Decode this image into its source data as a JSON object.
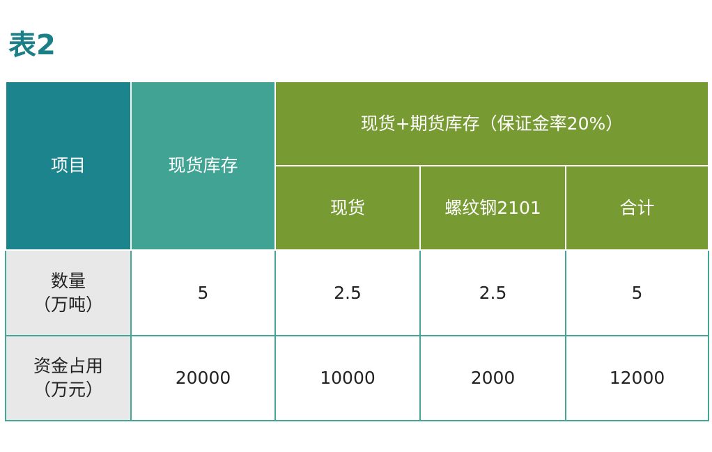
{
  "title": "表2",
  "header": {
    "item": "项目",
    "spot_inventory": "现货库存",
    "group": "现货+期货库存（保证金率20%）",
    "sub": [
      "现货",
      "螺纹钢2101",
      "合计"
    ]
  },
  "rows": [
    {
      "label1": "数量",
      "label2": "（万吨）",
      "values": [
        "5",
        "2.5",
        "2.5",
        "5"
      ]
    },
    {
      "label1": "资金占用",
      "label2": "（万元）",
      "values": [
        "20000",
        "10000",
        "2000",
        "12000"
      ]
    }
  ],
  "colors": {
    "item_header": "#1b848c",
    "spot_header": "#40a393",
    "group_header": "#789a32",
    "title": "#1a7f86"
  }
}
